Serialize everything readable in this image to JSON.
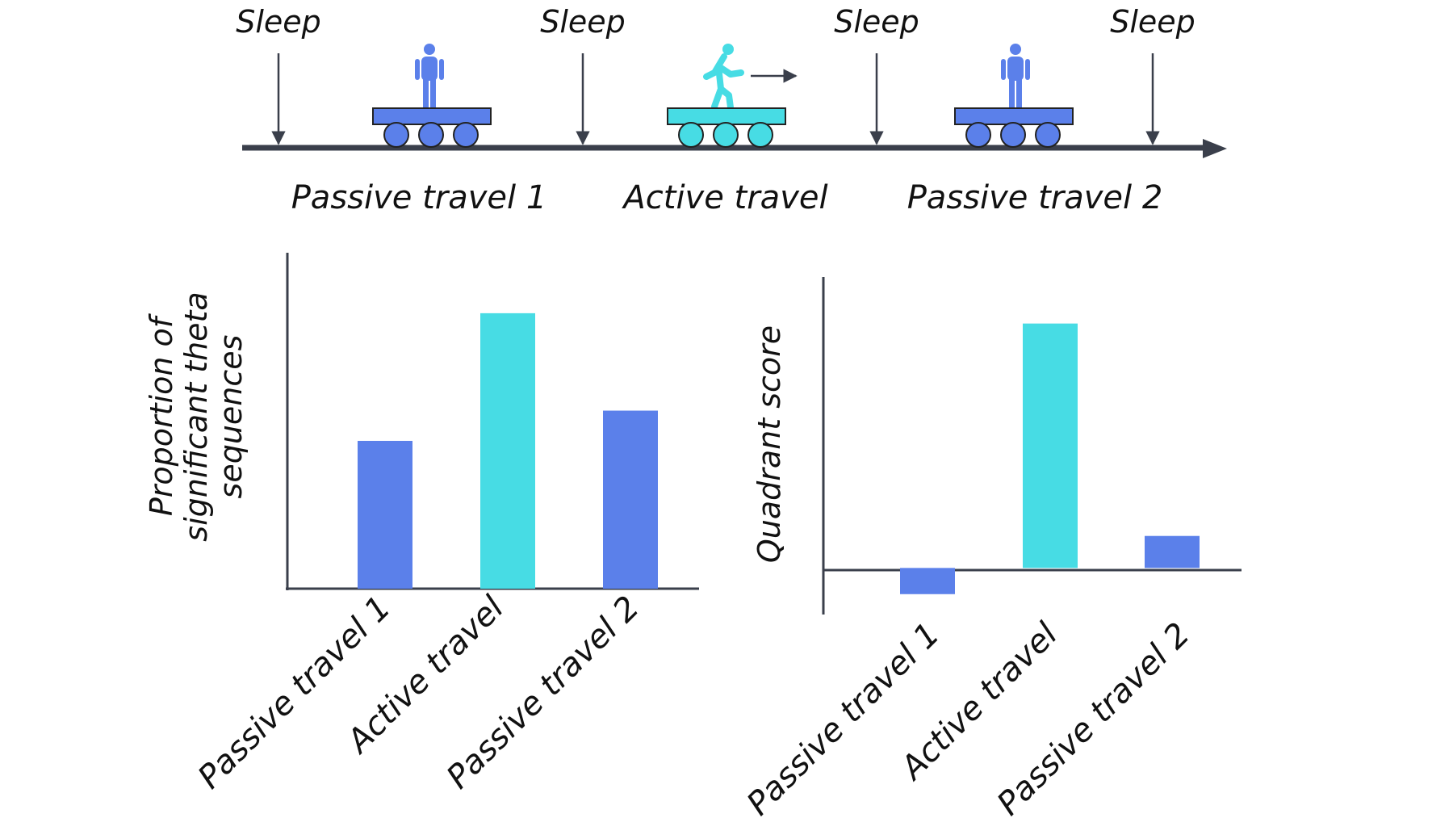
{
  "colors": {
    "passive": "#5B80EA",
    "active": "#47DCE4",
    "axis": "#3A3F4B",
    "text": "#111111"
  },
  "timeline": {
    "sleep_labels": [
      "Sleep",
      "Sleep",
      "Sleep",
      "Sleep"
    ],
    "phases": [
      {
        "label": "Passive travel 1",
        "kind": "passive",
        "icon": "person-standing-icon"
      },
      {
        "label": "Active travel",
        "kind": "active",
        "icon": "person-walking-icon"
      },
      {
        "label": "Passive travel 2",
        "kind": "passive",
        "icon": "person-standing-icon"
      }
    ]
  },
  "chart_data": [
    {
      "type": "bar",
      "title": "",
      "xlabel": "",
      "ylabel": "Proportion of significant theta sequences",
      "ylabel_lines": [
        "Proportion of",
        "significant theta",
        "sequences"
      ],
      "categories": [
        "Passive travel 1",
        "Active travel",
        "Passive travel 2"
      ],
      "values": [
        0.44,
        0.82,
        0.53
      ],
      "ylim": [
        0,
        1.0
      ],
      "colors": [
        "passive",
        "active",
        "passive"
      ]
    },
    {
      "type": "bar",
      "title": "",
      "xlabel": "",
      "ylabel": "Quadrant score",
      "ylabel_lines": [
        "Quadrant score"
      ],
      "categories": [
        "Passive travel 1",
        "Active travel",
        "Passive travel 2"
      ],
      "values": [
        -0.09,
        0.84,
        0.11
      ],
      "ylim": [
        -0.16,
        1.0
      ],
      "colors": [
        "passive",
        "active",
        "passive"
      ]
    }
  ]
}
